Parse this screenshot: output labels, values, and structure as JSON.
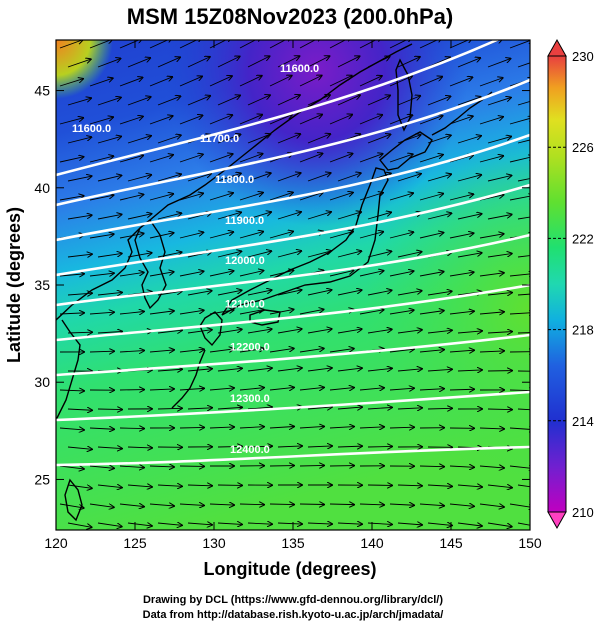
{
  "title": "MSM 15Z08Nov2023 (200.0hPa)",
  "xaxis": {
    "label": "Longitude (degrees)",
    "ticks": [
      "120",
      "125",
      "130",
      "135",
      "140",
      "145",
      "150"
    ],
    "range": [
      120,
      150
    ]
  },
  "yaxis": {
    "label": "Latitude  (degrees)",
    "ticks": [
      "25",
      "30",
      "35",
      "40",
      "45"
    ],
    "range": [
      22.4,
      47.6
    ]
  },
  "colorbar": {
    "ticks": [
      "230",
      "226",
      "222",
      "218",
      "214",
      "210"
    ],
    "range": [
      210,
      230
    ],
    "colors": [
      "#c000c0",
      "#7020d0",
      "#2030d0",
      "#2060e0",
      "#10b8e0",
      "#20d8b0",
      "#20e070",
      "#50e030",
      "#a0e020",
      "#e0e020",
      "#f0a020",
      "#f06030",
      "#e02020"
    ]
  },
  "contours": [
    {
      "value": "11600.0",
      "label": "11600.0"
    },
    {
      "value": "11700.0",
      "label": "11700.0"
    },
    {
      "value": "11800.0",
      "label": "11800.0"
    },
    {
      "value": "11900.0",
      "label": "11900.0"
    },
    {
      "value": "12000.0",
      "label": "12000.0"
    },
    {
      "value": "12100.0",
      "label": "12100.0"
    },
    {
      "value": "12200.0",
      "label": "12200.0"
    },
    {
      "value": "12300.0",
      "label": "12300.0"
    },
    {
      "value": "12400.0",
      "label": "12400.0"
    }
  ],
  "extra_contour_label": "11600.0",
  "credits": {
    "line1": "Drawing by DCL (https://www.gfd-dennou.org/library/dcl/)",
    "line2": "Data from http://database.rish.kyoto-u.ac.jp/arch/jmadata/"
  }
}
